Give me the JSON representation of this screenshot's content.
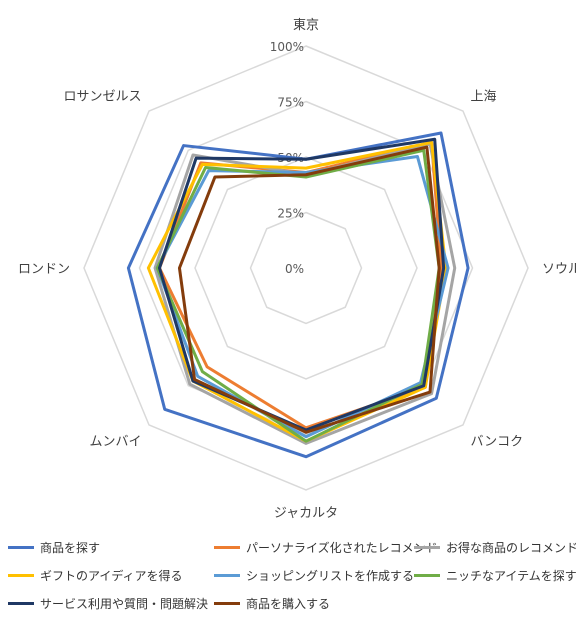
{
  "chart_data": {
    "type": "radar",
    "categories": [
      "東京",
      "上海",
      "ソウル",
      "バンコク",
      "ジャカルタ",
      "ムンバイ",
      "ロンドン",
      "ロサンゼルス"
    ],
    "rlim": [
      0,
      100
    ],
    "ticks": [
      "0%",
      "25%",
      "50%",
      "75%",
      "100%"
    ],
    "tick_values": [
      0,
      25,
      50,
      75,
      100
    ],
    "grid": true,
    "legend_position": "bottom",
    "series": [
      {
        "name": "商品を探す",
        "color": "#4472C4",
        "values": [
          49,
          86,
          73,
          83,
          85,
          90,
          80,
          78
        ]
      },
      {
        "name": "パーソナライズ化されたレコメンド",
        "color": "#ED7D31",
        "values": [
          43,
          80,
          61,
          76,
          72,
          63,
          66,
          67
        ]
      },
      {
        "name": "お得な商品のレコメンド",
        "color": "#A5A5A5",
        "values": [
          42,
          79,
          67,
          80,
          79,
          74,
          68,
          72
        ]
      },
      {
        "name": "ギフトのアイディアを得る",
        "color": "#FFC000",
        "values": [
          45,
          80,
          63,
          76,
          78,
          72,
          71,
          66
        ]
      },
      {
        "name": "ショッピングリストを作成する",
        "color": "#5B9BD5",
        "values": [
          43,
          71,
          64,
          73,
          76,
          69,
          67,
          62
        ]
      },
      {
        "name": "ニッチなアイテムを探す",
        "color": "#70AD47",
        "values": [
          41,
          75,
          60,
          74,
          78,
          66,
          67,
          64
        ]
      },
      {
        "name": "サービス利用や質問・問題解決",
        "color": "#1F3864",
        "values": [
          49,
          82,
          62,
          75,
          73,
          72,
          66,
          70
        ]
      },
      {
        "name": "商品を購入する",
        "color": "#843C0C",
        "values": [
          42,
          77,
          60,
          79,
          74,
          71,
          57,
          58
        ]
      }
    ]
  }
}
